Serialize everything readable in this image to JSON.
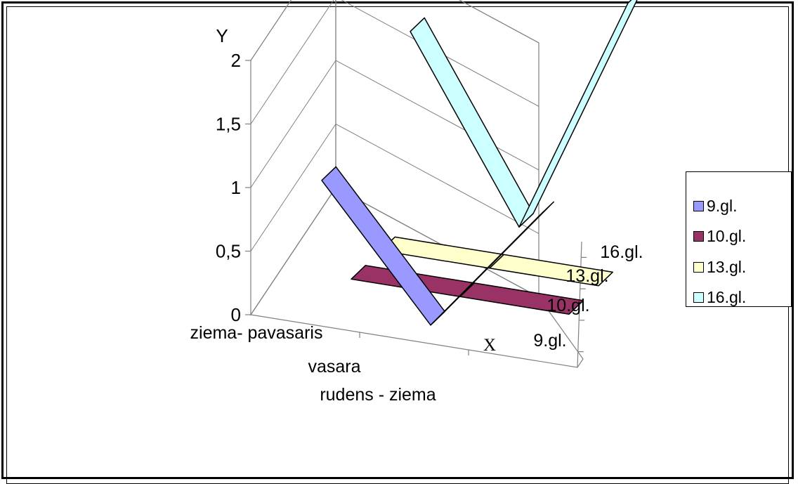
{
  "chart_data": {
    "type": "line",
    "view": "3d",
    "xlabel": "X",
    "ylabel": "Y",
    "categories": [
      "ziema- pavasaris",
      "vasara",
      "rudens - ziema"
    ],
    "yticks": [
      "0",
      "0,5",
      "1",
      "1,5",
      "2"
    ],
    "ylim": [
      0,
      2
    ],
    "depth_labels": [
      "9.gl.",
      "10.gl.",
      "13.gl.",
      "16.gl."
    ],
    "series": [
      {
        "name": "9.gl.",
        "values": [
          1,
          0,
          1
        ],
        "color": "#9999ff"
      },
      {
        "name": "10.gl.",
        "values": [
          0,
          0,
          0
        ],
        "color": "#993366"
      },
      {
        "name": "13.gl.",
        "values": [
          0,
          0,
          0
        ],
        "color": "#ffffcc"
      },
      {
        "name": "16.gl.",
        "values": [
          1.5,
          0.1,
          2
        ],
        "color": "#ccffff"
      }
    ],
    "legend_position": "right"
  }
}
